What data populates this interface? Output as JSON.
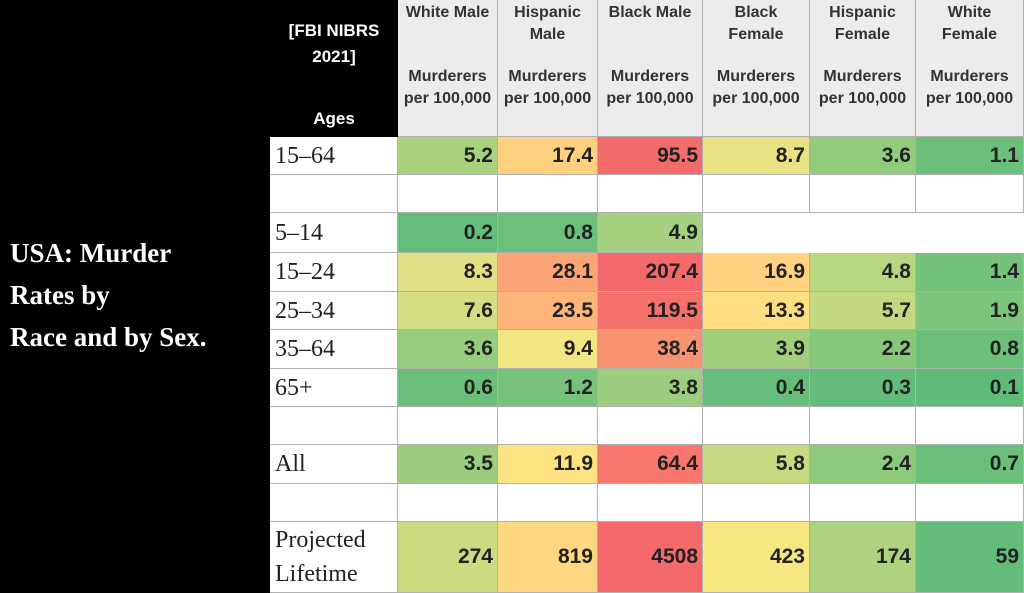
{
  "title_lines": [
    "USA: Murder",
    "Rates by",
    "Race and by Sex."
  ],
  "table": {
    "source": "[FBI NIBRS 2021]",
    "row_header": "Ages",
    "columns": [
      {
        "group": "White Male",
        "measure": "Murderers per 100,000"
      },
      {
        "group": "Hispanic Male",
        "measure": "Murderers per 100,000"
      },
      {
        "group": "Black Male",
        "measure": "Murderers per 100,000"
      },
      {
        "group": "Black Female",
        "measure": "Murderers per 100,000"
      },
      {
        "group": "Hispanic Female",
        "measure": "Murderers per 100,000"
      },
      {
        "group": "White Female",
        "measure": "Murderers per 100,000"
      }
    ],
    "rows": [
      {
        "label": "15–64",
        "values": [
          "5.2",
          "17.4",
          "95.5",
          "8.7",
          "3.6",
          "1.1"
        ]
      },
      {
        "label": "5–14",
        "values": [
          "0.2",
          "0.8",
          "4.9"
        ]
      },
      {
        "label": "15–24",
        "values": [
          "8.3",
          "28.1",
          "207.4",
          "16.9",
          "4.8",
          "1.4"
        ]
      },
      {
        "label": "25–34",
        "values": [
          "7.6",
          "23.5",
          "119.5",
          "13.3",
          "5.7",
          "1.9"
        ]
      },
      {
        "label": "35–64",
        "values": [
          "3.6",
          "9.4",
          "38.4",
          "3.9",
          "2.2",
          "0.8"
        ]
      },
      {
        "label": "65+",
        "values": [
          "0.6",
          "1.2",
          "3.8",
          "0.4",
          "0.3",
          "0.1"
        ]
      },
      {
        "label": "All",
        "values": [
          "3.5",
          "11.9",
          "64.4",
          "5.8",
          "2.4",
          "0.7"
        ]
      },
      {
        "label": "Projected Lifetime",
        "values": [
          "274",
          "819",
          "4508",
          "423",
          "174",
          "59"
        ]
      }
    ]
  }
}
